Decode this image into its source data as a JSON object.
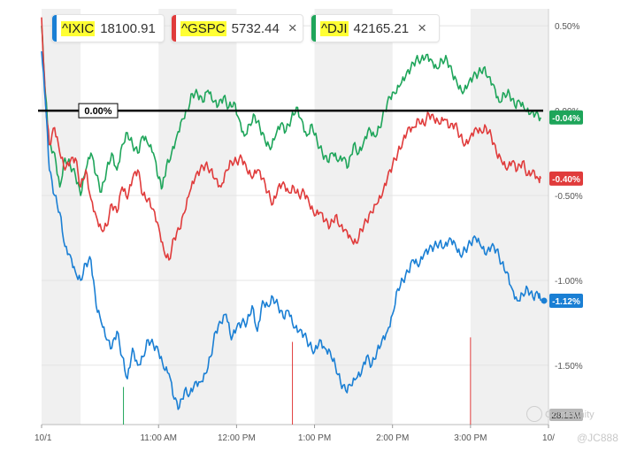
{
  "tickers": [
    {
      "symbol": "^IXIC",
      "value": "18100.91",
      "color": "#1a7fd4"
    },
    {
      "symbol": "^GSPC",
      "value": "5732.44",
      "color": "#e03b3b"
    },
    {
      "symbol": "^DJI",
      "value": "42165.21",
      "color": "#1ea55a"
    }
  ],
  "close_glyph": "×",
  "watermark": {
    "community": "Community",
    "handle": "@JC888"
  },
  "volume_label": "28.15M",
  "colors": {
    "ixic": "#1a7fd4",
    "gspc": "#e03b3b",
    "dji": "#1ea55a",
    "zero_line": "#000000",
    "band": "#f0f0f0"
  },
  "chart_data": {
    "type": "line",
    "title": "",
    "xlabel": "",
    "ylabel": "",
    "ylim": [
      -1.85,
      0.6
    ],
    "xlim": [
      0,
      390
    ],
    "x_ticks": [
      {
        "t": 0,
        "label": "10/1"
      },
      {
        "t": 90,
        "label": "11:00 AM"
      },
      {
        "t": 150,
        "label": "12:00 PM"
      },
      {
        "t": 210,
        "label": "1:00 PM"
      },
      {
        "t": 270,
        "label": "2:00 PM"
      },
      {
        "t": 330,
        "label": "3:00 PM"
      },
      {
        "t": 390,
        "label": "10/"
      }
    ],
    "y_ticks": [
      {
        "v": 0.5,
        "label": "0.50%"
      },
      {
        "v": 0.0,
        "label": "0.00%"
      },
      {
        "v": -0.5,
        "label": "-0.50%"
      },
      {
        "v": -1.0,
        "label": "-1.00%"
      },
      {
        "v": -1.5,
        "label": "-1.50%"
      }
    ],
    "reference_line": {
      "value": 0.0,
      "label": "0.00%"
    },
    "series": [
      {
        "name": "^DJI",
        "color": "#1ea55a",
        "last_label": "-0.04%",
        "points": [
          [
            0,
            0.5
          ],
          [
            3,
            0.1
          ],
          [
            6,
            -0.2
          ],
          [
            10,
            -0.25
          ],
          [
            14,
            -0.45
          ],
          [
            18,
            -0.28
          ],
          [
            22,
            -0.32
          ],
          [
            26,
            -0.38
          ],
          [
            30,
            -0.5
          ],
          [
            34,
            -0.35
          ],
          [
            38,
            -0.25
          ],
          [
            42,
            -0.38
          ],
          [
            46,
            -0.48
          ],
          [
            50,
            -0.35
          ],
          [
            54,
            -0.25
          ],
          [
            58,
            -0.35
          ],
          [
            62,
            -0.2
          ],
          [
            66,
            -0.13
          ],
          [
            70,
            -0.2
          ],
          [
            74,
            -0.25
          ],
          [
            78,
            -0.15
          ],
          [
            82,
            -0.2
          ],
          [
            86,
            -0.25
          ],
          [
            90,
            -0.4
          ],
          [
            93,
            -0.45
          ],
          [
            96,
            -0.33
          ],
          [
            100,
            -0.25
          ],
          [
            104,
            -0.15
          ],
          [
            108,
            -0.05
          ],
          [
            112,
            0.0
          ],
          [
            116,
            0.1
          ],
          [
            120,
            0.1
          ],
          [
            124,
            0.05
          ],
          [
            128,
            0.12
          ],
          [
            132,
            0.05
          ],
          [
            136,
            0.03
          ],
          [
            140,
            0.08
          ],
          [
            144,
            0.02
          ],
          [
            148,
            0.05
          ],
          [
            152,
            -0.05
          ],
          [
            156,
            -0.15
          ],
          [
            160,
            -0.08
          ],
          [
            164,
            -0.03
          ],
          [
            168,
            -0.1
          ],
          [
            172,
            -0.18
          ],
          [
            176,
            -0.23
          ],
          [
            180,
            -0.15
          ],
          [
            184,
            -0.08
          ],
          [
            188,
            -0.12
          ],
          [
            192,
            -0.05
          ],
          [
            196,
            0.02
          ],
          [
            200,
            -0.05
          ],
          [
            204,
            -0.15
          ],
          [
            208,
            -0.08
          ],
          [
            212,
            -0.18
          ],
          [
            216,
            -0.25
          ],
          [
            220,
            -0.3
          ],
          [
            224,
            -0.25
          ],
          [
            228,
            -0.3
          ],
          [
            232,
            -0.28
          ],
          [
            236,
            -0.33
          ],
          [
            240,
            -0.2
          ],
          [
            244,
            -0.25
          ],
          [
            248,
            -0.18
          ],
          [
            252,
            -0.1
          ],
          [
            256,
            -0.15
          ],
          [
            260,
            -0.1
          ],
          [
            264,
            0.0
          ],
          [
            268,
            0.08
          ],
          [
            272,
            0.1
          ],
          [
            276,
            0.15
          ],
          [
            280,
            0.2
          ],
          [
            284,
            0.25
          ],
          [
            288,
            0.3
          ],
          [
            292,
            0.3
          ],
          [
            296,
            0.33
          ],
          [
            300,
            0.3
          ],
          [
            304,
            0.25
          ],
          [
            308,
            0.3
          ],
          [
            312,
            0.3
          ],
          [
            316,
            0.22
          ],
          [
            320,
            0.15
          ],
          [
            324,
            0.1
          ],
          [
            328,
            0.15
          ],
          [
            332,
            0.2
          ],
          [
            336,
            0.22
          ],
          [
            340,
            0.25
          ],
          [
            344,
            0.2
          ],
          [
            348,
            0.15
          ],
          [
            352,
            0.05
          ],
          [
            356,
            0.1
          ],
          [
            360,
            0.1
          ],
          [
            364,
            0.03
          ],
          [
            368,
            0.05
          ],
          [
            372,
            0.0
          ],
          [
            376,
            -0.02
          ],
          [
            380,
            -0.02
          ],
          [
            384,
            -0.04
          ]
        ]
      },
      {
        "name": "^GSPC",
        "color": "#e03b3b",
        "last_label": "-0.40%",
        "points": [
          [
            0,
            0.55
          ],
          [
            3,
            0.05
          ],
          [
            6,
            -0.2
          ],
          [
            10,
            -0.1
          ],
          [
            14,
            -0.25
          ],
          [
            18,
            -0.35
          ],
          [
            22,
            -0.3
          ],
          [
            26,
            -0.28
          ],
          [
            30,
            -0.45
          ],
          [
            34,
            -0.35
          ],
          [
            38,
            -0.52
          ],
          [
            42,
            -0.62
          ],
          [
            46,
            -0.7
          ],
          [
            50,
            -0.68
          ],
          [
            54,
            -0.55
          ],
          [
            58,
            -0.6
          ],
          [
            62,
            -0.45
          ],
          [
            66,
            -0.52
          ],
          [
            70,
            -0.4
          ],
          [
            74,
            -0.35
          ],
          [
            78,
            -0.5
          ],
          [
            82,
            -0.52
          ],
          [
            86,
            -0.58
          ],
          [
            90,
            -0.68
          ],
          [
            94,
            -0.82
          ],
          [
            98,
            -0.88
          ],
          [
            102,
            -0.75
          ],
          [
            106,
            -0.7
          ],
          [
            110,
            -0.6
          ],
          [
            114,
            -0.48
          ],
          [
            118,
            -0.4
          ],
          [
            122,
            -0.35
          ],
          [
            126,
            -0.32
          ],
          [
            130,
            -0.35
          ],
          [
            134,
            -0.4
          ],
          [
            138,
            -0.45
          ],
          [
            142,
            -0.35
          ],
          [
            146,
            -0.3
          ],
          [
            150,
            -0.3
          ],
          [
            154,
            -0.28
          ],
          [
            158,
            -0.35
          ],
          [
            162,
            -0.4
          ],
          [
            166,
            -0.35
          ],
          [
            170,
            -0.4
          ],
          [
            174,
            -0.48
          ],
          [
            178,
            -0.55
          ],
          [
            182,
            -0.45
          ],
          [
            186,
            -0.42
          ],
          [
            190,
            -0.48
          ],
          [
            194,
            -0.45
          ],
          [
            198,
            -0.5
          ],
          [
            202,
            -0.48
          ],
          [
            206,
            -0.55
          ],
          [
            210,
            -0.62
          ],
          [
            214,
            -0.6
          ],
          [
            218,
            -0.65
          ],
          [
            222,
            -0.68
          ],
          [
            226,
            -0.62
          ],
          [
            230,
            -0.68
          ],
          [
            234,
            -0.7
          ],
          [
            238,
            -0.75
          ],
          [
            242,
            -0.78
          ],
          [
            246,
            -0.7
          ],
          [
            250,
            -0.65
          ],
          [
            254,
            -0.6
          ],
          [
            258,
            -0.55
          ],
          [
            262,
            -0.5
          ],
          [
            266,
            -0.4
          ],
          [
            270,
            -0.32
          ],
          [
            274,
            -0.25
          ],
          [
            278,
            -0.18
          ],
          [
            282,
            -0.1
          ],
          [
            286,
            -0.1
          ],
          [
            290,
            -0.05
          ],
          [
            294,
            -0.08
          ],
          [
            298,
            -0.02
          ],
          [
            302,
            -0.05
          ],
          [
            306,
            -0.08
          ],
          [
            310,
            -0.05
          ],
          [
            314,
            -0.1
          ],
          [
            318,
            -0.08
          ],
          [
            322,
            -0.15
          ],
          [
            326,
            -0.2
          ],
          [
            330,
            -0.15
          ],
          [
            334,
            -0.1
          ],
          [
            338,
            -0.12
          ],
          [
            342,
            -0.1
          ],
          [
            346,
            -0.15
          ],
          [
            350,
            -0.25
          ],
          [
            354,
            -0.3
          ],
          [
            358,
            -0.35
          ],
          [
            362,
            -0.3
          ],
          [
            366,
            -0.35
          ],
          [
            370,
            -0.3
          ],
          [
            374,
            -0.38
          ],
          [
            378,
            -0.35
          ],
          [
            382,
            -0.4
          ],
          [
            384,
            -0.4
          ]
        ]
      },
      {
        "name": "^IXIC",
        "color": "#1a7fd4",
        "last_label": "-1.12%",
        "points": [
          [
            0,
            0.35
          ],
          [
            3,
            0.05
          ],
          [
            6,
            -0.35
          ],
          [
            10,
            -0.5
          ],
          [
            14,
            -0.6
          ],
          [
            18,
            -0.8
          ],
          [
            22,
            -0.85
          ],
          [
            26,
            -0.95
          ],
          [
            30,
            -1.0
          ],
          [
            34,
            -0.9
          ],
          [
            38,
            -0.88
          ],
          [
            42,
            -1.15
          ],
          [
            46,
            -1.25
          ],
          [
            50,
            -1.35
          ],
          [
            54,
            -1.4
          ],
          [
            58,
            -1.3
          ],
          [
            62,
            -1.45
          ],
          [
            66,
            -1.58
          ],
          [
            70,
            -1.4
          ],
          [
            74,
            -1.5
          ],
          [
            78,
            -1.45
          ],
          [
            82,
            -1.35
          ],
          [
            86,
            -1.38
          ],
          [
            90,
            -1.42
          ],
          [
            94,
            -1.52
          ],
          [
            98,
            -1.55
          ],
          [
            102,
            -1.7
          ],
          [
            106,
            -1.75
          ],
          [
            110,
            -1.65
          ],
          [
            114,
            -1.67
          ],
          [
            118,
            -1.6
          ],
          [
            122,
            -1.6
          ],
          [
            126,
            -1.55
          ],
          [
            130,
            -1.45
          ],
          [
            134,
            -1.3
          ],
          [
            138,
            -1.25
          ],
          [
            142,
            -1.2
          ],
          [
            146,
            -1.35
          ],
          [
            150,
            -1.28
          ],
          [
            154,
            -1.25
          ],
          [
            158,
            -1.25
          ],
          [
            162,
            -1.15
          ],
          [
            166,
            -1.3
          ],
          [
            170,
            -1.12
          ],
          [
            174,
            -1.15
          ],
          [
            178,
            -1.1
          ],
          [
            182,
            -1.15
          ],
          [
            186,
            -1.22
          ],
          [
            190,
            -1.18
          ],
          [
            194,
            -1.28
          ],
          [
            198,
            -1.3
          ],
          [
            202,
            -1.32
          ],
          [
            206,
            -1.38
          ],
          [
            210,
            -1.42
          ],
          [
            214,
            -1.35
          ],
          [
            218,
            -1.4
          ],
          [
            222,
            -1.42
          ],
          [
            226,
            -1.5
          ],
          [
            230,
            -1.6
          ],
          [
            234,
            -1.65
          ],
          [
            238,
            -1.62
          ],
          [
            242,
            -1.58
          ],
          [
            246,
            -1.55
          ],
          [
            250,
            -1.45
          ],
          [
            254,
            -1.5
          ],
          [
            258,
            -1.42
          ],
          [
            262,
            -1.35
          ],
          [
            266,
            -1.3
          ],
          [
            270,
            -1.2
          ],
          [
            274,
            -1.05
          ],
          [
            278,
            -1.0
          ],
          [
            282,
            -0.95
          ],
          [
            286,
            -0.88
          ],
          [
            290,
            -0.92
          ],
          [
            294,
            -0.85
          ],
          [
            298,
            -0.82
          ],
          [
            302,
            -0.8
          ],
          [
            306,
            -0.78
          ],
          [
            310,
            -0.8
          ],
          [
            314,
            -0.75
          ],
          [
            318,
            -0.78
          ],
          [
            322,
            -0.85
          ],
          [
            326,
            -0.82
          ],
          [
            330,
            -0.78
          ],
          [
            334,
            -0.75
          ],
          [
            338,
            -0.8
          ],
          [
            342,
            -0.85
          ],
          [
            346,
            -0.8
          ],
          [
            350,
            -0.82
          ],
          [
            354,
            -0.9
          ],
          [
            358,
            -0.95
          ],
          [
            362,
            -1.05
          ],
          [
            366,
            -1.12
          ],
          [
            370,
            -1.08
          ],
          [
            374,
            -1.05
          ],
          [
            378,
            -1.1
          ],
          [
            382,
            -1.08
          ],
          [
            384,
            -1.12
          ]
        ]
      }
    ],
    "volume_bars": [
      {
        "t": 63,
        "value": 0.25,
        "color": "#1ea55a"
      },
      {
        "t": 193,
        "value": 0.55,
        "color": "#e03b3b"
      },
      {
        "t": 330,
        "value": 0.58,
        "color": "#e03b3b"
      }
    ]
  }
}
